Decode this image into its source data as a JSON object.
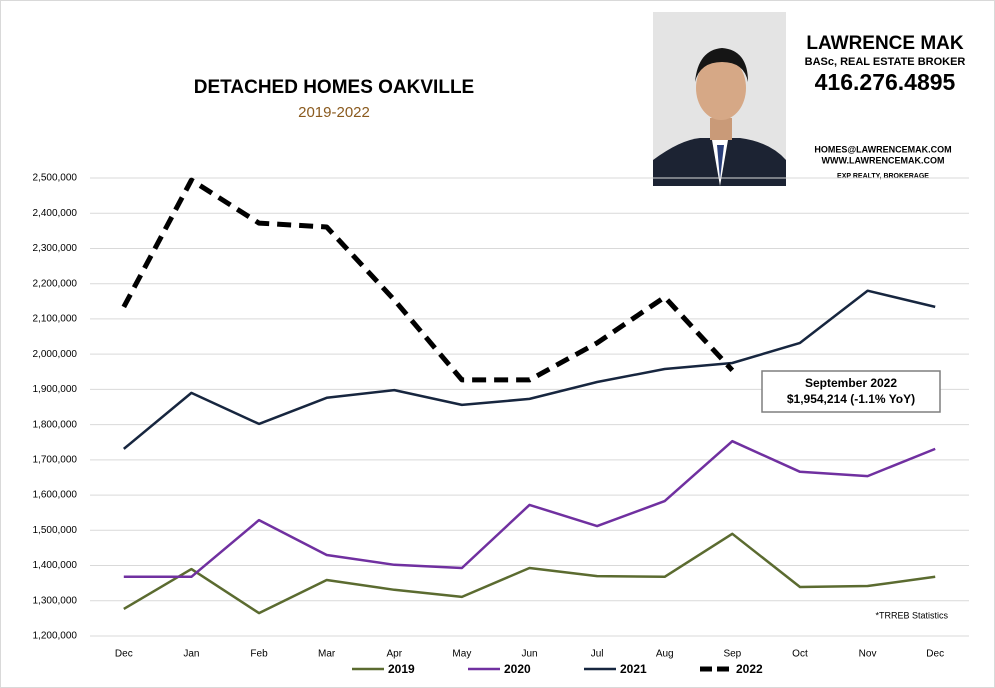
{
  "chart_data": {
    "type": "line",
    "title": "DETACHED HOMES OAKVILLE",
    "subtitle": "2019-2022",
    "categories": [
      "Dec",
      "Jan",
      "Feb",
      "Mar",
      "Apr",
      "May",
      "Jun",
      "Jul",
      "Aug",
      "Sep",
      "Oct",
      "Nov",
      "Dec"
    ],
    "series": [
      {
        "name": "2019",
        "color": "#5b6b30",
        "dashed": false,
        "values": [
          1277000,
          1390000,
          1265000,
          1359000,
          1331000,
          1311000,
          1393000,
          1370000,
          1368000,
          1490000,
          1339000,
          1342000,
          1368000
        ]
      },
      {
        "name": "2020",
        "color": "#7030a0",
        "dashed": false,
        "values": [
          1368000,
          1368000,
          1529000,
          1430000,
          1402000,
          1393000,
          1572000,
          1512000,
          1583000,
          1753000,
          1666000,
          1654000,
          1731000
        ]
      },
      {
        "name": "2021",
        "color": "#17263f",
        "dashed": false,
        "values": [
          1731000,
          1890000,
          1802000,
          1876000,
          1898000,
          1856000,
          1873000,
          1921000,
          1958000,
          1975000,
          2032000,
          2180000,
          2134000
        ]
      },
      {
        "name": "2022",
        "color": "#000000",
        "dashed": true,
        "values": [
          2134000,
          2494000,
          2372000,
          2361000,
          2154000,
          1927000,
          1927000,
          2032000,
          2162000,
          1954214,
          null,
          null,
          null
        ]
      }
    ],
    "ylim": [
      1200000,
      2500000
    ],
    "yticks": [
      {
        "value": 1200000,
        "label": "1,200,000"
      },
      {
        "value": 1300000,
        "label": "1,300,000"
      },
      {
        "value": 1400000,
        "label": "1,400,000"
      },
      {
        "value": 1500000,
        "label": "1,500,000"
      },
      {
        "value": 1600000,
        "label": "1,600,000"
      },
      {
        "value": 1700000,
        "label": "1,700,000"
      },
      {
        "value": 1800000,
        "label": "1,800,000"
      },
      {
        "value": 1900000,
        "label": "1,900,000"
      },
      {
        "value": 2000000,
        "label": "2,000,000"
      },
      {
        "value": 2100000,
        "label": "2,100,000"
      },
      {
        "value": 2200000,
        "label": "2,200,000"
      },
      {
        "value": 2300000,
        "label": "2,300,000"
      },
      {
        "value": 2400000,
        "label": "2,400,000"
      },
      {
        "value": 2500000,
        "label": "2,500,000"
      }
    ],
    "grid": true,
    "legend": "bottom",
    "annotation": [
      "September 2022",
      "$1,954,214  (-1.1% YoY)"
    ],
    "footnote": "*TRREB Statistics"
  },
  "branding": {
    "name": "LAWRENCE MAK",
    "credentials": "BASc, REAL ESTATE BROKER",
    "phone": "416.276.4895",
    "email": "HOMES@LAWRENCEMAK.COM",
    "website": "WWW.LAWRENCEMAK.COM",
    "brokerage": "EXP REALTY, BROKERAGE"
  }
}
